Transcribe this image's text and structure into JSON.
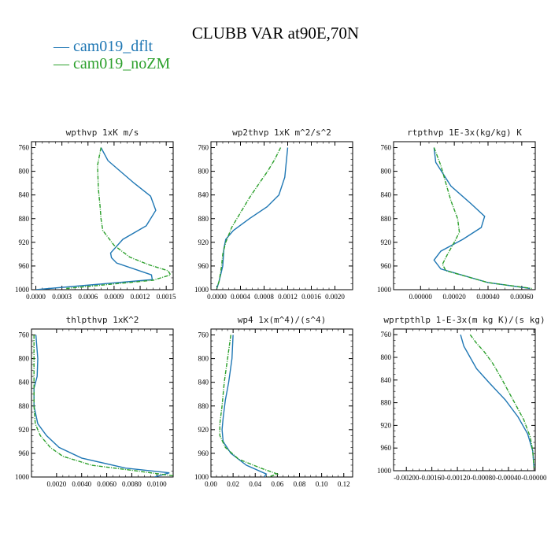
{
  "title": "CLUBB VAR at90E,70N",
  "legend": [
    "cam019_dflt",
    "cam019_noZM"
  ],
  "colors": {
    "dflt": "#1f77b4",
    "noZM": "#2ca02c"
  },
  "chart_data": [
    {
      "type": "line",
      "title": "wpthvp  1xK m/s",
      "ylim": [
        1000,
        750
      ],
      "yticks": [
        760,
        800,
        840,
        880,
        920,
        960,
        1000
      ],
      "xlim": [
        -5e-05,
        0.00158
      ],
      "xticks": [
        0.0,
        0.0003,
        0.0006,
        0.0009,
        0.0012,
        0.0015
      ],
      "xtick_labels": [
        "0.0000",
        "0.0003",
        "0.0006",
        "0.0009",
        "0.0012",
        "0.0015"
      ],
      "series": [
        {
          "name": "cam019_dflt",
          "x": [
            0.00075,
            0.00083,
            0.00113,
            0.00132,
            0.00138,
            0.00127,
            0.001,
            0.00086,
            0.00087,
            0.00093,
            0.00133,
            0.00134,
            0.0
          ],
          "y": [
            760,
            782,
            820,
            842,
            866,
            892,
            915,
            938,
            946,
            955,
            975,
            983,
            1000
          ]
        },
        {
          "name": "cam019_noZM",
          "x": [
            0.00075,
            0.00071,
            0.00072,
            0.00074,
            0.00075,
            0.00077,
            0.0009,
            0.00108,
            0.0013,
            0.00152,
            0.00155,
            0.00135,
            0.00035
          ],
          "y": [
            760,
            790,
            830,
            860,
            880,
            900,
            925,
            945,
            958,
            968,
            975,
            984,
            998
          ]
        }
      ]
    },
    {
      "type": "line",
      "title": "wp2thvp  1xK m^2/s^2",
      "ylim": [
        1000,
        750
      ],
      "yticks": [
        760,
        800,
        840,
        880,
        920,
        960,
        1000
      ],
      "xlim": [
        -0.0001,
        0.0023
      ],
      "xticks": [
        0.0,
        0.0004,
        0.0008,
        0.0012,
        0.0016,
        0.002
      ],
      "xtick_labels": [
        "0.0000",
        "0.0004",
        "0.0008",
        "0.0012",
        "0.0016",
        "0.0020"
      ],
      "series": [
        {
          "name": "cam019_dflt",
          "x": [
            0.0012,
            0.00118,
            0.00115,
            0.00105,
            0.00085,
            0.00055,
            0.00028,
            0.00015,
            0.00012,
            0.0001,
            4e-05,
            0.0
          ],
          "y": [
            760,
            780,
            810,
            840,
            860,
            880,
            900,
            915,
            930,
            960,
            985,
            998
          ]
        },
        {
          "name": "cam019_noZM",
          "x": [
            0.00108,
            0.00098,
            0.00086,
            0.00072,
            0.00055,
            0.0004,
            0.00025,
            0.00015,
            0.0001,
            8e-05,
            4e-05,
            0.0
          ],
          "y": [
            760,
            780,
            800,
            820,
            845,
            870,
            895,
            920,
            940,
            960,
            985,
            998
          ]
        }
      ]
    },
    {
      "type": "line",
      "title": "rtpthvp  1E-3x(kg/kg) K",
      "ylim": [
        1000,
        750
      ],
      "yticks": [
        760,
        800,
        840,
        880,
        920,
        960,
        1000
      ],
      "xlim": [
        -0.00016,
        0.00068
      ],
      "xticks": [
        0.0,
        0.0002,
        0.0004,
        0.0006
      ],
      "xtick_labels": [
        "0.00000",
        "0.00020",
        "0.00040",
        "0.00060"
      ],
      "series": [
        {
          "name": "cam019_dflt",
          "x": [
            8e-05,
            9e-05,
            0.00018,
            0.0003,
            0.00038,
            0.00036,
            0.00025,
            0.00012,
            8e-05,
            0.00012,
            0.0004,
            0.00065
          ],
          "y": [
            760,
            785,
            825,
            855,
            876,
            895,
            915,
            935,
            950,
            965,
            988,
            998
          ]
        },
        {
          "name": "cam019_noZM",
          "x": [
            8e-05,
            0.00012,
            0.00015,
            0.00018,
            0.00022,
            0.00023,
            0.0002,
            0.00016,
            0.00013,
            0.00015,
            0.0004,
            0.00066
          ],
          "y": [
            760,
            790,
            820,
            850,
            880,
            903,
            920,
            940,
            957,
            968,
            988,
            998
          ]
        }
      ]
    },
    {
      "type": "line",
      "title": "thlpthvp  1xK^2",
      "ylim": [
        1000,
        750
      ],
      "yticks": [
        760,
        800,
        840,
        880,
        920,
        960,
        1000
      ],
      "xlim": [
        0.0,
        0.0113
      ],
      "xticks": [
        0.002,
        0.004,
        0.006,
        0.008,
        0.01
      ],
      "xtick_labels": [
        "0.0020",
        "0.0040",
        "0.0060",
        "0.0080",
        "0.0100"
      ],
      "series": [
        {
          "name": "cam019_dflt",
          "x": [
            0.00035,
            0.0005,
            0.00045,
            0.0002,
            0.0002,
            0.0005,
            0.0012,
            0.0022,
            0.004,
            0.0075,
            0.011,
            0.0098
          ],
          "y": [
            760,
            800,
            830,
            850,
            880,
            910,
            930,
            950,
            968,
            985,
            993,
            1000
          ]
        },
        {
          "name": "cam019_noZM",
          "x": [
            0.0002,
            0.0002,
            0.0002,
            0.0002,
            0.0003,
            0.0007,
            0.0015,
            0.0025,
            0.0048,
            0.0085,
            0.0113
          ],
          "y": [
            760,
            800,
            840,
            880,
            910,
            930,
            950,
            965,
            980,
            990,
            998
          ]
        }
      ]
    },
    {
      "type": "line",
      "title": "wp4  1x(m^4)/(s^4)",
      "ylim": [
        1000,
        750
      ],
      "yticks": [
        760,
        800,
        840,
        880,
        920,
        960,
        1000
      ],
      "xlim": [
        0.0,
        0.128
      ],
      "xticks": [
        0.0,
        0.02,
        0.04,
        0.06,
        0.08,
        0.1,
        0.12
      ],
      "xtick_labels": [
        "0.00",
        "0.02",
        "0.04",
        "0.06",
        "0.08",
        "0.10",
        "0.12"
      ],
      "series": [
        {
          "name": "cam019_dflt",
          "x": [
            0.02,
            0.019,
            0.016,
            0.013,
            0.011,
            0.01,
            0.011,
            0.018,
            0.032,
            0.05,
            0.048
          ],
          "y": [
            760,
            800,
            840,
            870,
            900,
            920,
            940,
            960,
            980,
            995,
            1000
          ]
        },
        {
          "name": "cam019_noZM",
          "x": [
            0.018,
            0.015,
            0.012,
            0.01,
            0.008,
            0.008,
            0.013,
            0.025,
            0.045,
            0.06,
            0.052
          ],
          "y": [
            760,
            800,
            840,
            880,
            910,
            930,
            950,
            970,
            985,
            995,
            1000
          ]
        }
      ]
    },
    {
      "type": "line",
      "title": "wprtpthlp  1-E-3x(m kg K)/(s kg)",
      "ylim": [
        1000,
        750
      ],
      "yticks": [
        760,
        800,
        840,
        880,
        920,
        960,
        1000
      ],
      "xlim": [
        -0.0022,
        2e-05
      ],
      "xticks": [
        -0.002,
        -0.0016,
        -0.0012,
        -0.0008,
        -0.0004,
        0.0
      ],
      "xtick_labels": [
        "-0.00200",
        "-0.00160",
        "-0.00120",
        "-0.00080",
        "-0.00040",
        "-0.00000"
      ],
      "series": [
        {
          "name": "cam019_dflt",
          "x": [
            -0.00115,
            -0.0011,
            -0.001,
            -0.0009,
            -0.0007,
            -0.00045,
            -0.00025,
            -0.0001,
            -2e-05,
            0.0
          ],
          "y": [
            760,
            780,
            800,
            820,
            845,
            875,
            905,
            935,
            965,
            995
          ]
        },
        {
          "name": "cam019_noZM",
          "x": [
            -0.001,
            -0.0009,
            -0.00078,
            -0.00065,
            -0.00052,
            -0.0004,
            -0.00028,
            -0.00016,
            -6e-05,
            -2e-05,
            0.0
          ],
          "y": [
            760,
            775,
            790,
            810,
            835,
            860,
            885,
            910,
            940,
            965,
            995
          ]
        }
      ]
    }
  ]
}
